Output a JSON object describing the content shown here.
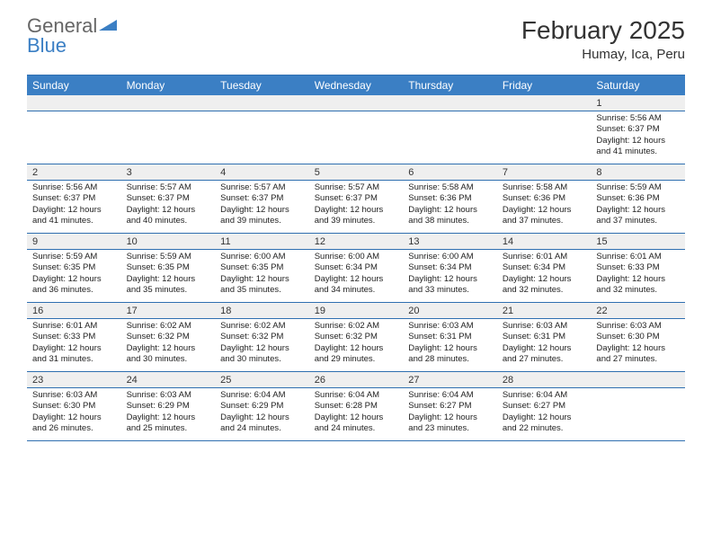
{
  "logo": {
    "text1": "General",
    "text2": "Blue"
  },
  "title": {
    "month": "February 2025",
    "location": "Humay, Ica, Peru"
  },
  "colors": {
    "header_bg": "#3b7fc4",
    "header_text": "#ffffff",
    "border": "#2f6fb0",
    "numrow_bg": "#efefef",
    "text": "#333333"
  },
  "day_headers": [
    "Sunday",
    "Monday",
    "Tuesday",
    "Wednesday",
    "Thursday",
    "Friday",
    "Saturday"
  ],
  "weeks": [
    {
      "nums": [
        "",
        "",
        "",
        "",
        "",
        "",
        "1"
      ],
      "cells": [
        null,
        null,
        null,
        null,
        null,
        null,
        {
          "sunrise": "5:56 AM",
          "sunset": "6:37 PM",
          "dayh": "12",
          "daym": "41"
        }
      ]
    },
    {
      "nums": [
        "2",
        "3",
        "4",
        "5",
        "6",
        "7",
        "8"
      ],
      "cells": [
        {
          "sunrise": "5:56 AM",
          "sunset": "6:37 PM",
          "dayh": "12",
          "daym": "41"
        },
        {
          "sunrise": "5:57 AM",
          "sunset": "6:37 PM",
          "dayh": "12",
          "daym": "40"
        },
        {
          "sunrise": "5:57 AM",
          "sunset": "6:37 PM",
          "dayh": "12",
          "daym": "39"
        },
        {
          "sunrise": "5:57 AM",
          "sunset": "6:37 PM",
          "dayh": "12",
          "daym": "39"
        },
        {
          "sunrise": "5:58 AM",
          "sunset": "6:36 PM",
          "dayh": "12",
          "daym": "38"
        },
        {
          "sunrise": "5:58 AM",
          "sunset": "6:36 PM",
          "dayh": "12",
          "daym": "37"
        },
        {
          "sunrise": "5:59 AM",
          "sunset": "6:36 PM",
          "dayh": "12",
          "daym": "37"
        }
      ]
    },
    {
      "nums": [
        "9",
        "10",
        "11",
        "12",
        "13",
        "14",
        "15"
      ],
      "cells": [
        {
          "sunrise": "5:59 AM",
          "sunset": "6:35 PM",
          "dayh": "12",
          "daym": "36"
        },
        {
          "sunrise": "5:59 AM",
          "sunset": "6:35 PM",
          "dayh": "12",
          "daym": "35"
        },
        {
          "sunrise": "6:00 AM",
          "sunset": "6:35 PM",
          "dayh": "12",
          "daym": "35"
        },
        {
          "sunrise": "6:00 AM",
          "sunset": "6:34 PM",
          "dayh": "12",
          "daym": "34"
        },
        {
          "sunrise": "6:00 AM",
          "sunset": "6:34 PM",
          "dayh": "12",
          "daym": "33"
        },
        {
          "sunrise": "6:01 AM",
          "sunset": "6:34 PM",
          "dayh": "12",
          "daym": "32"
        },
        {
          "sunrise": "6:01 AM",
          "sunset": "6:33 PM",
          "dayh": "12",
          "daym": "32"
        }
      ]
    },
    {
      "nums": [
        "16",
        "17",
        "18",
        "19",
        "20",
        "21",
        "22"
      ],
      "cells": [
        {
          "sunrise": "6:01 AM",
          "sunset": "6:33 PM",
          "dayh": "12",
          "daym": "31"
        },
        {
          "sunrise": "6:02 AM",
          "sunset": "6:32 PM",
          "dayh": "12",
          "daym": "30"
        },
        {
          "sunrise": "6:02 AM",
          "sunset": "6:32 PM",
          "dayh": "12",
          "daym": "30"
        },
        {
          "sunrise": "6:02 AM",
          "sunset": "6:32 PM",
          "dayh": "12",
          "daym": "29"
        },
        {
          "sunrise": "6:03 AM",
          "sunset": "6:31 PM",
          "dayh": "12",
          "daym": "28"
        },
        {
          "sunrise": "6:03 AM",
          "sunset": "6:31 PM",
          "dayh": "12",
          "daym": "27"
        },
        {
          "sunrise": "6:03 AM",
          "sunset": "6:30 PM",
          "dayh": "12",
          "daym": "27"
        }
      ]
    },
    {
      "nums": [
        "23",
        "24",
        "25",
        "26",
        "27",
        "28",
        ""
      ],
      "cells": [
        {
          "sunrise": "6:03 AM",
          "sunset": "6:30 PM",
          "dayh": "12",
          "daym": "26"
        },
        {
          "sunrise": "6:03 AM",
          "sunset": "6:29 PM",
          "dayh": "12",
          "daym": "25"
        },
        {
          "sunrise": "6:04 AM",
          "sunset": "6:29 PM",
          "dayh": "12",
          "daym": "24"
        },
        {
          "sunrise": "6:04 AM",
          "sunset": "6:28 PM",
          "dayh": "12",
          "daym": "24"
        },
        {
          "sunrise": "6:04 AM",
          "sunset": "6:27 PM",
          "dayh": "12",
          "daym": "23"
        },
        {
          "sunrise": "6:04 AM",
          "sunset": "6:27 PM",
          "dayh": "12",
          "daym": "22"
        },
        null
      ]
    }
  ],
  "labels": {
    "sunrise": "Sunrise:",
    "sunset": "Sunset:",
    "daylight_prefix": "Daylight:",
    "hours_word": "hours",
    "and_word": "and",
    "minutes_suffix": "minutes."
  }
}
